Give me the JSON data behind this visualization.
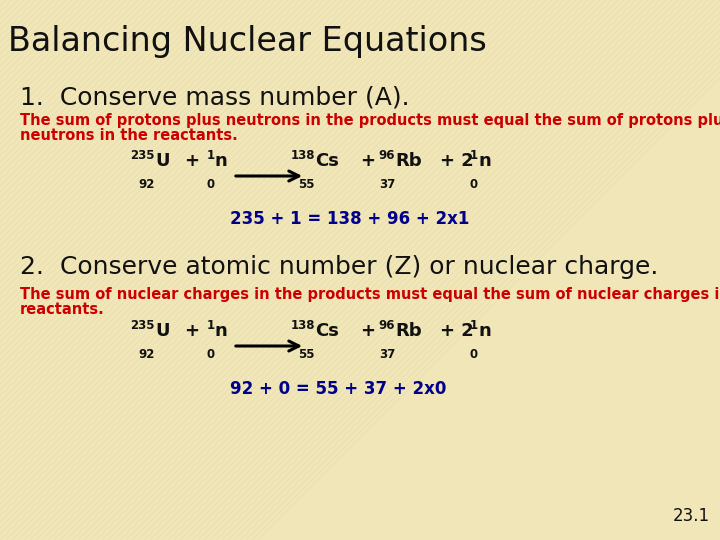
{
  "title": "Balancing Nuclear Equations",
  "bg_color": "#F0E6B8",
  "title_color": "#111111",
  "title_fontsize": 24,
  "title_bold": false,
  "section1_header": "1.  Conserve mass number (A).",
  "section1_header_color": "#111111",
  "section1_header_fontsize": 18,
  "section1_desc_line1": "The sum of protons plus neutrons in the products must equal the sum of protons plus",
  "section1_desc_line2": "neutrons in the reactants.",
  "section1_desc_color": "#CC0000",
  "section1_desc_fontsize": 10.5,
  "section2_header": "2.  Conserve atomic number (Z) or nuclear charge.",
  "section2_header_color": "#111111",
  "section2_header_fontsize": 18,
  "section2_desc_line1": "The sum of nuclear charges in the products must equal the sum of nuclear charges in the",
  "section2_desc_line2": "reactants.",
  "section2_desc_color": "#CC0000",
  "section2_desc_fontsize": 10.5,
  "eq1_balance": "235 + 1 = 138 + 96 + 2x1",
  "eq2_balance": "92 + 0 = 55 + 37 + 2x0",
  "footnote": "23.1",
  "footnote_color": "#111111",
  "footnote_fontsize": 12,
  "eq_color": "#111111",
  "eq_sym_size": 13,
  "eq_num_size": 8.5,
  "eq_balance_fontsize": 12,
  "eq_balance_color": "#00008B"
}
